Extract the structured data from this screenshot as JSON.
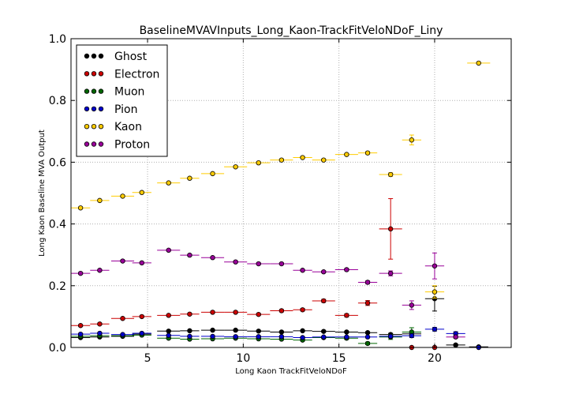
{
  "chart_data": {
    "type": "scatter",
    "title": "BaselineMVAVInputs_Long_Kaon-TrackFitVeloNDoF_Liny",
    "xlabel": "Long Kaon TrackFitVeloNDoF",
    "ylabel": "Long Kaon Baseline MVA Output",
    "xlim": [
      1,
      24
    ],
    "ylim": [
      0,
      1.0
    ],
    "xticks": [
      5,
      10,
      15,
      20
    ],
    "yticks": [
      0.0,
      0.2,
      0.4,
      0.6,
      0.8,
      1.0
    ],
    "xtick_labels": [
      "5",
      "10",
      "15",
      "20"
    ],
    "ytick_labels": [
      "0.0",
      "0.2",
      "0.4",
      "0.6",
      "0.8",
      "1.0"
    ],
    "grid": true,
    "legend_position": "top-left",
    "series": [
      {
        "name": "Ghost",
        "color": "#000000",
        "points": [
          [
            1.5,
            0.032,
            0.5,
            0.002
          ],
          [
            2.5,
            0.034,
            0.5,
            0.002
          ],
          [
            3.7,
            0.036,
            0.6,
            0.002
          ],
          [
            4.7,
            0.043,
            0.5,
            0.002
          ],
          [
            6.1,
            0.053,
            0.6,
            0.002
          ],
          [
            7.2,
            0.054,
            0.5,
            0.002
          ],
          [
            8.4,
            0.056,
            0.6,
            0.002
          ],
          [
            9.6,
            0.056,
            0.6,
            0.002
          ],
          [
            10.8,
            0.053,
            0.6,
            0.002
          ],
          [
            12.0,
            0.05,
            0.6,
            0.002
          ],
          [
            13.1,
            0.054,
            0.5,
            0.002
          ],
          [
            14.2,
            0.052,
            0.6,
            0.002
          ],
          [
            15.4,
            0.05,
            0.6,
            0.002
          ],
          [
            16.5,
            0.048,
            0.5,
            0.003
          ],
          [
            17.7,
            0.042,
            0.6,
            0.004
          ],
          [
            18.8,
            0.044,
            0.5,
            0.006
          ],
          [
            20.0,
            0.158,
            0.5,
            0.04
          ],
          [
            21.1,
            0.008,
            0.5,
            0.003
          ],
          [
            22.3,
            0.002,
            0.5,
            0.002
          ]
        ]
      },
      {
        "name": "Electron",
        "color": "#cc0000",
        "points": [
          [
            1.5,
            0.071,
            0.5,
            0.003
          ],
          [
            2.5,
            0.076,
            0.5,
            0.003
          ],
          [
            3.7,
            0.094,
            0.6,
            0.003
          ],
          [
            4.7,
            0.1,
            0.5,
            0.003
          ],
          [
            6.1,
            0.104,
            0.6,
            0.003
          ],
          [
            7.2,
            0.108,
            0.5,
            0.003
          ],
          [
            8.4,
            0.114,
            0.6,
            0.003
          ],
          [
            9.6,
            0.114,
            0.6,
            0.003
          ],
          [
            10.8,
            0.107,
            0.6,
            0.003
          ],
          [
            12.0,
            0.119,
            0.6,
            0.004
          ],
          [
            13.1,
            0.122,
            0.5,
            0.004
          ],
          [
            14.2,
            0.151,
            0.6,
            0.005
          ],
          [
            15.4,
            0.104,
            0.6,
            0.005
          ],
          [
            16.5,
            0.144,
            0.5,
            0.008
          ],
          [
            17.7,
            0.384,
            0.6,
            0.098
          ],
          [
            18.8,
            0.0,
            0.5,
            0.0
          ],
          [
            20.0,
            0.0,
            0.5,
            0.0
          ]
        ]
      },
      {
        "name": "Muon",
        "color": "#006600",
        "points": [
          [
            1.5,
            0.036,
            0.5,
            0.002
          ],
          [
            2.5,
            0.038,
            0.5,
            0.002
          ],
          [
            3.7,
            0.038,
            0.6,
            0.002
          ],
          [
            4.7,
            0.04,
            0.5,
            0.002
          ],
          [
            6.1,
            0.03,
            0.6,
            0.002
          ],
          [
            7.2,
            0.027,
            0.5,
            0.002
          ],
          [
            8.4,
            0.028,
            0.6,
            0.002
          ],
          [
            9.6,
            0.03,
            0.6,
            0.002
          ],
          [
            10.8,
            0.028,
            0.6,
            0.002
          ],
          [
            12.0,
            0.027,
            0.6,
            0.002
          ],
          [
            13.1,
            0.024,
            0.5,
            0.003
          ],
          [
            14.2,
            0.032,
            0.6,
            0.003
          ],
          [
            15.4,
            0.03,
            0.6,
            0.004
          ],
          [
            16.5,
            0.013,
            0.5,
            0.004
          ],
          [
            17.7,
            0.034,
            0.6,
            0.008
          ],
          [
            18.8,
            0.05,
            0.5,
            0.014
          ]
        ]
      },
      {
        "name": "Pion",
        "color": "#0000cc",
        "points": [
          [
            1.5,
            0.043,
            0.5,
            0.002
          ],
          [
            2.5,
            0.046,
            0.5,
            0.002
          ],
          [
            3.7,
            0.042,
            0.6,
            0.002
          ],
          [
            4.7,
            0.046,
            0.5,
            0.002
          ],
          [
            6.1,
            0.039,
            0.6,
            0.002
          ],
          [
            7.2,
            0.036,
            0.5,
            0.002
          ],
          [
            8.4,
            0.036,
            0.6,
            0.002
          ],
          [
            9.6,
            0.035,
            0.6,
            0.002
          ],
          [
            10.8,
            0.035,
            0.6,
            0.002
          ],
          [
            12.0,
            0.035,
            0.6,
            0.002
          ],
          [
            13.1,
            0.032,
            0.5,
            0.002
          ],
          [
            14.2,
            0.034,
            0.6,
            0.002
          ],
          [
            15.4,
            0.034,
            0.6,
            0.002
          ],
          [
            16.5,
            0.034,
            0.5,
            0.003
          ],
          [
            17.7,
            0.036,
            0.6,
            0.004
          ],
          [
            18.8,
            0.038,
            0.5,
            0.006
          ],
          [
            20.0,
            0.059,
            0.5,
            0.006
          ],
          [
            21.1,
            0.045,
            0.5,
            0.006
          ],
          [
            22.3,
            0.0,
            0.5,
            0.0
          ]
        ]
      },
      {
        "name": "Kaon",
        "color": "#ffcc00",
        "points": [
          [
            1.5,
            0.452,
            0.5,
            0.003
          ],
          [
            2.5,
            0.476,
            0.5,
            0.003
          ],
          [
            3.7,
            0.49,
            0.6,
            0.003
          ],
          [
            4.7,
            0.502,
            0.5,
            0.003
          ],
          [
            6.1,
            0.533,
            0.6,
            0.003
          ],
          [
            7.2,
            0.548,
            0.5,
            0.003
          ],
          [
            8.4,
            0.563,
            0.6,
            0.003
          ],
          [
            9.6,
            0.585,
            0.6,
            0.003
          ],
          [
            10.8,
            0.598,
            0.6,
            0.003
          ],
          [
            12.0,
            0.607,
            0.6,
            0.003
          ],
          [
            13.1,
            0.615,
            0.5,
            0.003
          ],
          [
            14.2,
            0.607,
            0.6,
            0.003
          ],
          [
            15.4,
            0.625,
            0.6,
            0.003
          ],
          [
            16.5,
            0.63,
            0.5,
            0.004
          ],
          [
            17.7,
            0.56,
            0.6,
            0.006
          ],
          [
            18.8,
            0.672,
            0.5,
            0.016
          ],
          [
            20.0,
            0.18,
            0.5,
            0.02
          ],
          [
            22.3,
            0.921,
            0.6,
            0.002
          ]
        ]
      },
      {
        "name": "Proton",
        "color": "#990099",
        "points": [
          [
            1.5,
            0.24,
            0.5,
            0.003
          ],
          [
            2.5,
            0.25,
            0.5,
            0.003
          ],
          [
            3.7,
            0.28,
            0.6,
            0.003
          ],
          [
            4.7,
            0.274,
            0.5,
            0.003
          ],
          [
            6.1,
            0.315,
            0.6,
            0.003
          ],
          [
            7.2,
            0.299,
            0.5,
            0.003
          ],
          [
            8.4,
            0.291,
            0.6,
            0.003
          ],
          [
            9.6,
            0.277,
            0.6,
            0.003
          ],
          [
            10.8,
            0.271,
            0.6,
            0.003
          ],
          [
            12.0,
            0.271,
            0.6,
            0.003
          ],
          [
            13.1,
            0.25,
            0.5,
            0.003
          ],
          [
            14.2,
            0.245,
            0.6,
            0.003
          ],
          [
            15.4,
            0.252,
            0.6,
            0.004
          ],
          [
            16.5,
            0.211,
            0.5,
            0.005
          ],
          [
            17.7,
            0.24,
            0.6,
            0.008
          ],
          [
            18.8,
            0.137,
            0.5,
            0.014
          ],
          [
            20.0,
            0.264,
            0.5,
            0.042
          ],
          [
            21.1,
            0.034,
            0.5,
            0.004
          ]
        ]
      }
    ]
  }
}
